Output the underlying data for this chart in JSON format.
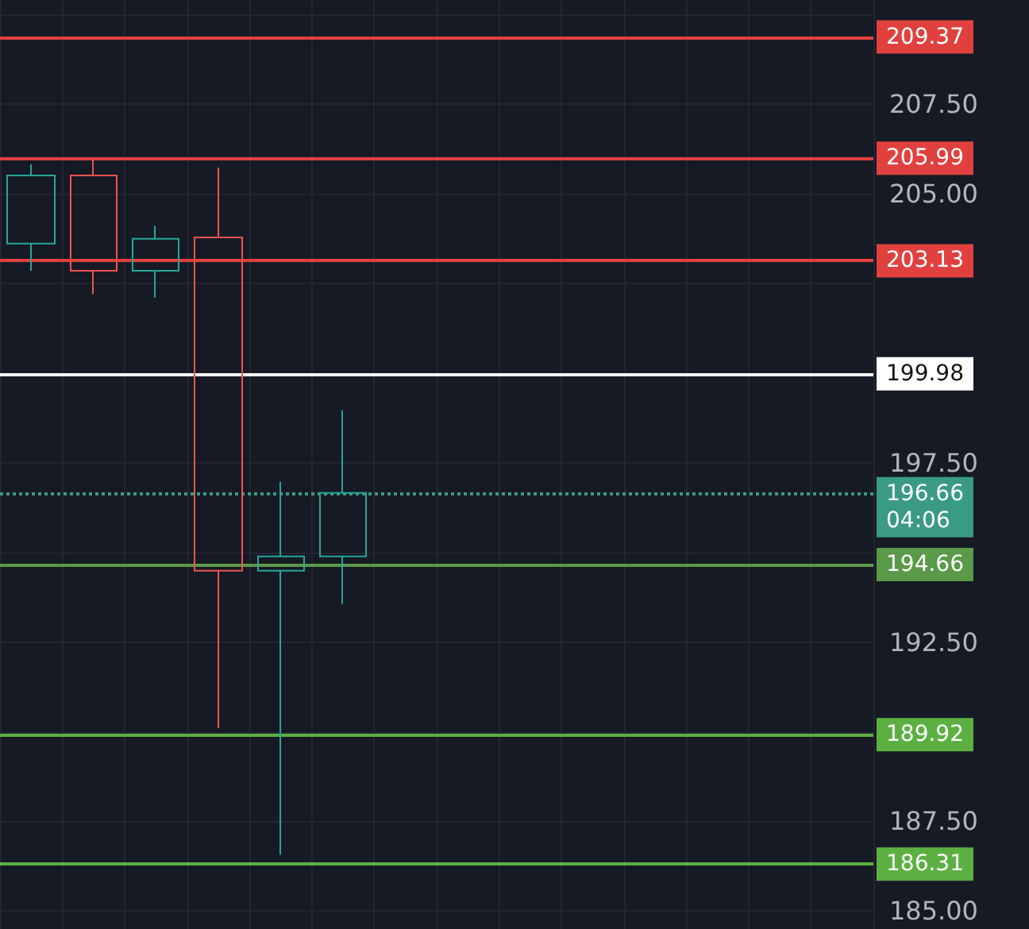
{
  "chart_data": {
    "type": "candlestick",
    "categories": [
      null,
      null,
      null,
      null,
      null,
      null,
      null,
      null,
      null,
      null,
      null,
      null,
      null,
      null
    ],
    "ohlc": [
      [
        203.61,
        205.82,
        202.85,
        205.51
      ],
      [
        205.51,
        205.95,
        202.2,
        202.85
      ],
      [
        202.85,
        204.1,
        202.1,
        203.74
      ],
      [
        203.78,
        205.73,
        190.1,
        194.49
      ],
      [
        194.49,
        196.97,
        186.57,
        194.89
      ],
      [
        194.89,
        198.96,
        193.56,
        196.66
      ],
      null,
      null,
      null,
      null,
      null,
      null,
      null,
      null
    ],
    "colors": [
      "#26a69a",
      "#ef5350",
      "#26a69a",
      "#ef5350",
      "#26a69a",
      "#26a69a",
      null,
      null,
      null,
      null,
      null,
      null,
      null,
      null
    ],
    "ylim": [
      184.5,
      210.4
    ],
    "yticks": [
      {
        "value": 210,
        "label": null
      },
      {
        "value": 207.5,
        "label": "207.50"
      },
      {
        "value": 205,
        "label": "205.00"
      },
      {
        "value": 202.5,
        "label": null
      },
      {
        "value": 200,
        "label": null
      },
      {
        "value": 197.5,
        "label": "197.50"
      },
      {
        "value": 195,
        "label": null
      },
      {
        "value": 192.5,
        "label": "192.50"
      },
      {
        "value": 190,
        "label": null
      },
      {
        "value": 187.5,
        "label": "187.50"
      },
      {
        "value": 185,
        "label": "185.00"
      }
    ],
    "tick_labels": "y",
    "grid": true,
    "ref_lines": [
      {
        "axis": "y",
        "value": 209.37,
        "label": "209.37",
        "color": "#e0413f",
        "line_style": "solid"
      },
      {
        "axis": "y",
        "value": 205.99,
        "label": "205.99",
        "color": "#e0413f",
        "line_style": "solid"
      },
      {
        "axis": "y",
        "value": 203.13,
        "label": "203.13",
        "color": "#e0413f",
        "line_style": "solid"
      },
      {
        "axis": "y",
        "value": 199.98,
        "label": "199.98",
        "color": "#ffffff",
        "line_style": "solid"
      },
      {
        "axis": "y",
        "value": 196.66,
        "label": "196.66\n04:06",
        "color": "#3a9a86",
        "line_style": "dotted"
      },
      {
        "axis": "y",
        "value": 194.66,
        "label": "194.66",
        "color": "#5a9a48",
        "line_style": "solid"
      },
      {
        "axis": "y",
        "value": 189.92,
        "label": "189.92",
        "color": "#5cb042",
        "line_style": "solid"
      },
      {
        "axis": "y",
        "value": 186.31,
        "label": "186.31",
        "color": "#5cb042",
        "line_style": "solid"
      }
    ]
  }
}
